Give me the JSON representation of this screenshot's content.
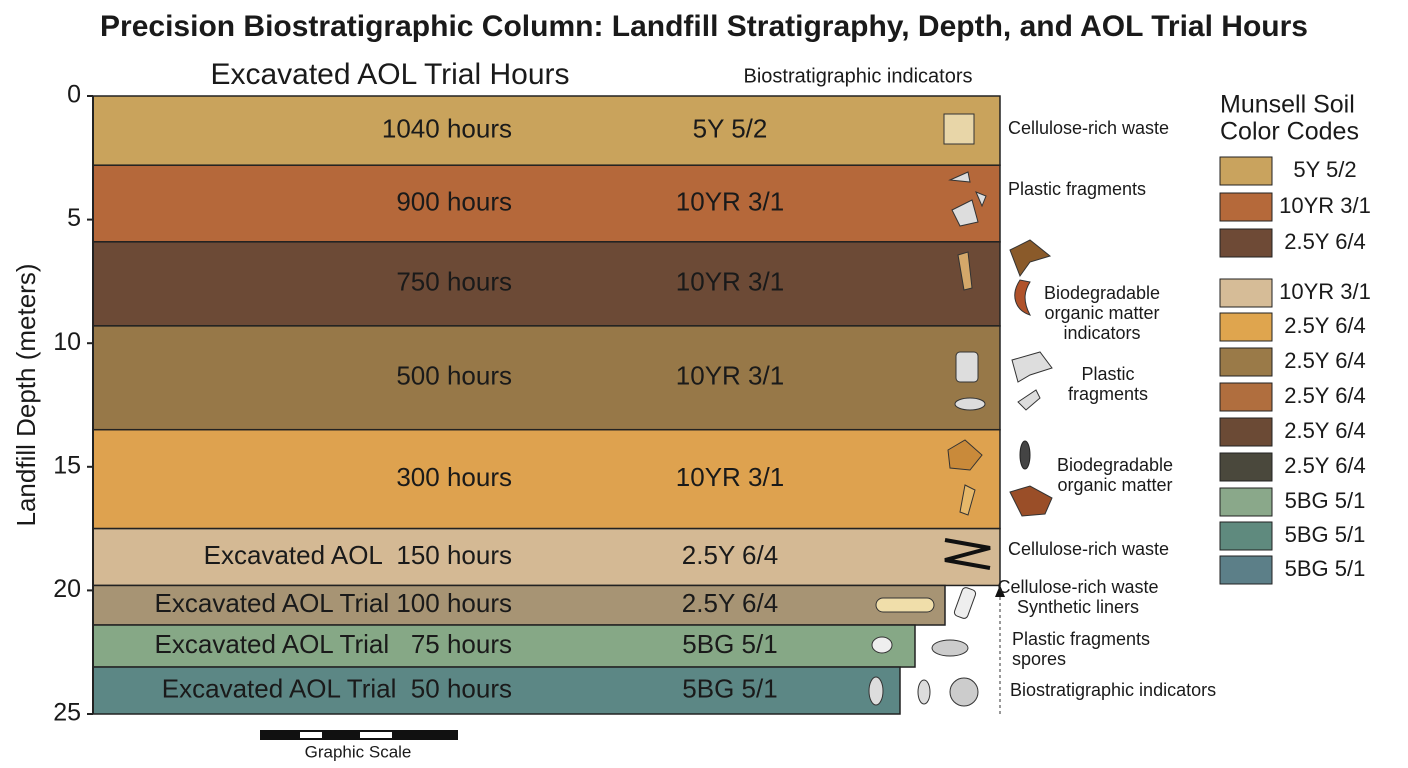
{
  "chart_data": {
    "type": "strata",
    "title": "Precision Biostratigraphic Column: Landfill Stratigraphy, Depth, and AOL Trial Hours",
    "column_header": "Excavated AOL Trial Hours",
    "indicator_header": "Biostratigraphic indicators",
    "y_label": "Landfill Depth (meters)",
    "ylim": [
      0,
      25
    ],
    "yticks": [
      0,
      5,
      10,
      15,
      20,
      25
    ],
    "scale_label": "Graphic Scale",
    "layers": [
      {
        "label": "1040 hours",
        "code": "5Y 5/2",
        "color": "#c9a35c",
        "top": 0,
        "bottom": 2.8
      },
      {
        "label": "900 hours",
        "code": "10YR 3/1",
        "color": "#b5683a",
        "top": 2.8,
        "bottom": 5.9
      },
      {
        "label": "750 hours",
        "code": "10YR 3/1",
        "color": "#6c4a36",
        "top": 5.9,
        "bottom": 9.3
      },
      {
        "label": "500 hours",
        "code": "10YR 3/1",
        "color": "#977848",
        "top": 9.3,
        "bottom": 13.5
      },
      {
        "label": "300 hours",
        "code": "10YR 3/1",
        "color": "#dea24f",
        "top": 13.5,
        "bottom": 17.5
      },
      {
        "label": "Excavated AOL  150 hours",
        "code": "2.5Y 6/4",
        "color": "#d4b994",
        "top": 17.5,
        "bottom": 19.8
      },
      {
        "label": "Excavated AOL Trial 100 hours",
        "code": "2.5Y 6/4",
        "color": "#a79474",
        "top": 19.8,
        "bottom": 21.4
      },
      {
        "label": "Excavated AOL Trial   75 hours",
        "code": "5BG 5/1",
        "color": "#86a886",
        "top": 21.4,
        "bottom": 23.1
      },
      {
        "label": "Excavated AOL Trial  50 hours",
        "code": "5BG 5/1",
        "color": "#5c8785",
        "top": 23.1,
        "bottom": 25
      }
    ],
    "indicators": [
      {
        "lines": [
          "Cellulose-rich waste"
        ]
      },
      {
        "lines": [
          "Plastic fragments"
        ]
      },
      {
        "lines": [
          "Biodegradable",
          "organic matter",
          "indicators"
        ]
      },
      {
        "lines": [
          "Plastic",
          "fragments"
        ]
      },
      {
        "lines": [
          "Biodegradable",
          "organic matter"
        ]
      },
      {
        "lines": [
          "Cellulose-rich waste"
        ]
      },
      {
        "lines": [
          "Cellulose-rich waste",
          "Synthetic liners"
        ]
      },
      {
        "lines": [
          "Plastic fragments",
          "spores"
        ]
      },
      {
        "lines": [
          "Biostratigraphic indicators"
        ]
      }
    ],
    "legend": {
      "title": [
        "Munsell Soil",
        "Color Codes"
      ],
      "items": [
        {
          "color": "#c9a35e",
          "label": "5Y 5/2"
        },
        {
          "color": "#b5693a",
          "label": "10YR 3/1"
        },
        {
          "color": "#6e4a36",
          "label": "2.5Y 6/4"
        },
        {
          "color": "#d6bc97",
          "label": "10YR 3/1"
        },
        {
          "color": "#dfa54e",
          "label": "2.5Y 6/4"
        },
        {
          "color": "#9a7a48",
          "label": "2.5Y 6/4"
        },
        {
          "color": "#b06e3e",
          "label": "2.5Y 6/4"
        },
        {
          "color": "#6b4a35",
          "label": "2.5Y 6/4"
        },
        {
          "color": "#4a483c",
          "label": "2.5Y 6/4"
        },
        {
          "color": "#8aa88a",
          "label": "5BG 5/1"
        },
        {
          "color": "#5f8a7e",
          "label": "5BG 5/1"
        },
        {
          "color": "#5c7f88",
          "label": "5BG 5/1"
        }
      ]
    }
  }
}
